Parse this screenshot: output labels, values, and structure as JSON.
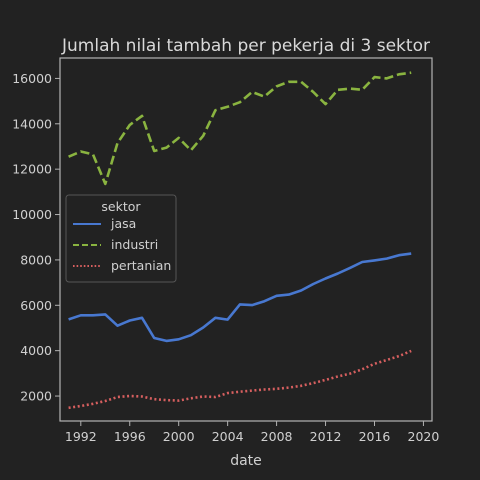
{
  "chart_data": {
    "type": "line",
    "title": "Jumlah nilai tambah per pekerja di 3 sektor",
    "xlabel": "date",
    "ylabel": "",
    "xlim": [
      1990.3,
      2020.7
    ],
    "ylim": [
      900,
      16900
    ],
    "x_ticks": [
      1992,
      1996,
      2000,
      2004,
      2008,
      2012,
      2016,
      2020
    ],
    "y_ticks": [
      2000,
      4000,
      6000,
      8000,
      10000,
      12000,
      14000,
      16000
    ],
    "grid": false,
    "legend": {
      "title": "sektor",
      "placement": "center-left"
    },
    "x": [
      1991,
      1992,
      1993,
      1994,
      1995,
      1996,
      1997,
      1998,
      1999,
      2000,
      2001,
      2002,
      2003,
      2004,
      2005,
      2006,
      2007,
      2008,
      2009,
      2010,
      2011,
      2012,
      2013,
      2014,
      2015,
      2016,
      2017,
      2018,
      2019
    ],
    "series": [
      {
        "name": "jasa",
        "color": "#4878d0",
        "dash": "solid",
        "values": [
          5380,
          5560,
          5560,
          5600,
          5100,
          5330,
          5450,
          4560,
          4430,
          4500,
          4680,
          5020,
          5450,
          5370,
          6040,
          6010,
          6180,
          6420,
          6470,
          6650,
          6940,
          7180,
          7400,
          7650,
          7910,
          7980,
          8060,
          8210,
          8280
        ]
      },
      {
        "name": "industri",
        "color": "#8ab440",
        "dash": "dashed",
        "values": [
          12550,
          12780,
          12650,
          11350,
          13150,
          13950,
          14350,
          12800,
          12950,
          13380,
          12830,
          13470,
          14600,
          14750,
          14950,
          15400,
          15200,
          15650,
          15850,
          15850,
          15400,
          14870,
          15500,
          15550,
          15500,
          16060,
          16000,
          16180,
          16250
        ]
      },
      {
        "name": "pertanian",
        "color": "#d65f5f",
        "dash": "dotted",
        "values": [
          1480,
          1560,
          1660,
          1780,
          1960,
          2000,
          1980,
          1860,
          1820,
          1800,
          1900,
          1980,
          1960,
          2130,
          2190,
          2240,
          2290,
          2320,
          2370,
          2450,
          2570,
          2710,
          2860,
          2990,
          3180,
          3420,
          3590,
          3760,
          3990
        ]
      }
    ]
  }
}
